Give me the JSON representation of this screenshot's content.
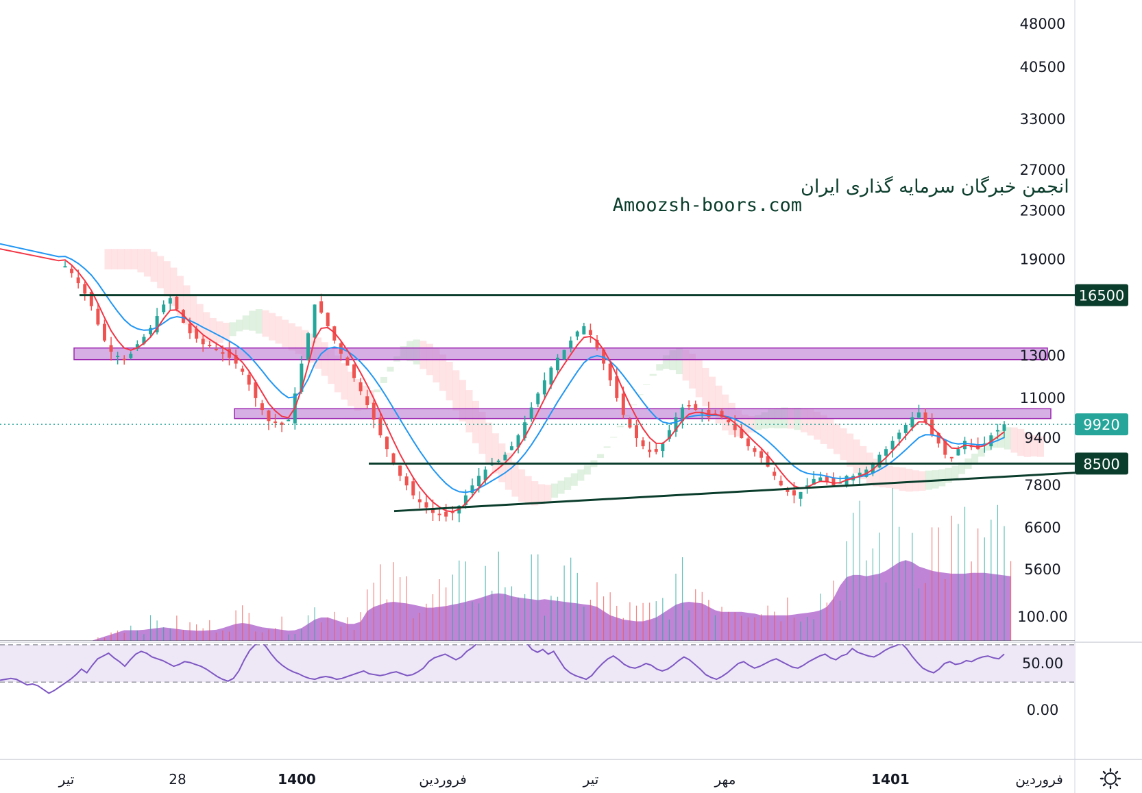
{
  "watermark": {
    "line1": "انجمن خبرگان سرمایه گذاری ایران",
    "line2": "Amoozsh-boors.com"
  },
  "settings_icon": "gear-icon",
  "colors": {
    "level_line": "#0b3d2c",
    "zone_fill": "#b56fd0",
    "ema_fast": "#f23645",
    "ema_slow": "#2196f3",
    "candle_up": "#26a69a",
    "candle_down": "#ef5350",
    "price_badge": "#26a69a",
    "rsi_line": "#7e57c2",
    "rsi_band": "#ede7f6",
    "volume_area": "#b56fd0"
  },
  "chart_data": [
    {
      "type": "candlestick",
      "title": "",
      "scale": "log",
      "y_axis_ticks": [
        48000,
        40500,
        33000,
        27000,
        23000,
        19000,
        13000,
        11000,
        9400,
        7800,
        6600,
        5600
      ],
      "x_axis_ticks": [
        "تیر",
        "28",
        "1400",
        "فروردین",
        "تیر",
        "مهر",
        "1401",
        "فروردین"
      ],
      "x_axis_bold": [
        "1400",
        "1401"
      ],
      "last_price": 9920,
      "badges": [
        16500,
        9920,
        8500
      ],
      "horizontal_levels": [
        16500,
        8500
      ],
      "zones": [
        {
          "low": 12800,
          "high": 13400
        },
        {
          "low": 10150,
          "high": 10550
        }
      ],
      "trendline": {
        "from": {
          "date": "1399-12",
          "price": 7050
        },
        "to": {
          "date": "1401-03",
          "price": 8200
        }
      },
      "close_series": [
        18500,
        18000,
        17300,
        16600,
        15800,
        14700,
        13800,
        13200,
        13000,
        12800,
        13100,
        13600,
        14000,
        14500,
        15200,
        15900,
        16300,
        15600,
        14800,
        14200,
        13900,
        13600,
        13500,
        13300,
        13100,
        12900,
        12600,
        12200,
        11600,
        11000,
        10500,
        10050,
        10000,
        9900,
        10100,
        11200,
        12600,
        14200,
        15900,
        15400,
        14600,
        13800,
        13100,
        12500,
        11900,
        11300,
        10700,
        10100,
        9500,
        9000,
        8500,
        8100,
        7800,
        7500,
        7300,
        7150,
        7000,
        6950,
        6900,
        7000,
        7200,
        7500,
        7800,
        8100,
        8300,
        8500,
        8600,
        8800,
        9100,
        9500,
        10000,
        10600,
        11200,
        11800,
        12400,
        12900,
        13300,
        13800,
        14300,
        14600,
        14100,
        13400,
        12600,
        11800,
        11000,
        10300,
        9800,
        9400,
        9100,
        8900,
        8900,
        9200,
        9700,
        10200,
        10600,
        10700,
        10500,
        10400,
        10200,
        10300,
        10200,
        10000,
        9700,
        9400,
        9100,
        8900,
        8700,
        8400,
        8100,
        7800,
        7600,
        7500,
        7600,
        7800,
        8000,
        8050,
        7900,
        7800,
        7900,
        8100,
        8100,
        8200,
        8300,
        8500,
        8800,
        9000,
        9300,
        9600,
        9900,
        10200,
        10400,
        10000,
        9500,
        9200,
        8800,
        8700,
        9000,
        9300,
        9100,
        9000,
        9200,
        9500,
        9700,
        9920
      ],
      "volume_profile": [
        0,
        0,
        0,
        0,
        0,
        5,
        10,
        15,
        20,
        25,
        25,
        25,
        26,
        28,
        30,
        32,
        30,
        28,
        26,
        25,
        24,
        24,
        25,
        26,
        30,
        35,
        40,
        42,
        40,
        36,
        32,
        30,
        28,
        26,
        24,
        25,
        30,
        40,
        50,
        55,
        55,
        50,
        45,
        40,
        40,
        45,
        70,
        80,
        85,
        90,
        92,
        90,
        88,
        85,
        82,
        78,
        78,
        80,
        82,
        85,
        88,
        92,
        96,
        100,
        105,
        110,
        112,
        110,
        105,
        102,
        100,
        98,
        96,
        98,
        96,
        94,
        92,
        90,
        88,
        86,
        84,
        80,
        70,
        60,
        55,
        50,
        48,
        46,
        46,
        50,
        55,
        65,
        75,
        85,
        90,
        92,
        90,
        88,
        80,
        72,
        68,
        68,
        68,
        68,
        66,
        64,
        60,
        60,
        60,
        60,
        60,
        62,
        64,
        66,
        68,
        72,
        80,
        100,
        130,
        150,
        155,
        155,
        152,
        155,
        158,
        165,
        175,
        185,
        190,
        185,
        175,
        170,
        165,
        162,
        160,
        158,
        158,
        158,
        160,
        160,
        160,
        158,
        156,
        154,
        152
      ],
      "ichimoku_cloud": true,
      "indicators": [
        "EMA fast",
        "EMA slow",
        "Ichimoku cloud",
        "Volume"
      ]
    },
    {
      "type": "line",
      "title": "",
      "y_axis_ticks": [
        "100.00",
        "50.00",
        "0.00"
      ],
      "ylim": [
        0,
        100
      ],
      "band": [
        30,
        70
      ],
      "values": [
        32,
        33,
        34,
        33,
        30,
        27,
        28,
        26,
        22,
        18,
        21,
        25,
        29,
        33,
        38,
        44,
        40,
        48,
        55,
        58,
        61,
        56,
        52,
        47,
        54,
        60,
        63,
        61,
        57,
        55,
        53,
        50,
        47,
        49,
        52,
        51,
        49,
        47,
        44,
        40,
        36,
        33,
        31,
        34,
        42,
        54,
        64,
        70,
        74,
        68,
        60,
        53,
        48,
        44,
        41,
        39,
        36,
        34,
        33,
        35,
        36,
        35,
        33,
        34,
        36,
        38,
        40,
        42,
        39,
        38,
        37,
        38,
        40,
        41,
        39,
        37,
        38,
        41,
        45,
        52,
        56,
        58,
        60,
        57,
        54,
        57,
        63,
        67,
        72,
        74,
        76,
        72,
        75,
        80,
        78,
        82,
        77,
        72,
        65,
        62,
        65,
        60,
        63,
        54,
        45,
        40,
        37,
        35,
        33,
        37,
        44,
        50,
        55,
        58,
        54,
        49,
        46,
        45,
        47,
        50,
        48,
        44,
        42,
        44,
        48,
        53,
        57,
        54,
        49,
        44,
        38,
        35,
        33,
        36,
        40,
        45,
        50,
        52,
        48,
        45,
        47,
        50,
        53,
        55,
        52,
        49,
        46,
        45,
        48,
        52,
        55,
        58,
        60,
        56,
        54,
        58,
        60,
        66,
        62,
        60,
        58,
        57,
        60,
        64,
        67,
        69,
        72,
        66,
        58,
        51,
        45,
        42,
        40,
        44,
        50,
        52,
        49,
        50,
        53,
        52,
        55,
        57,
        58,
        56,
        55,
        60
      ]
    }
  ]
}
